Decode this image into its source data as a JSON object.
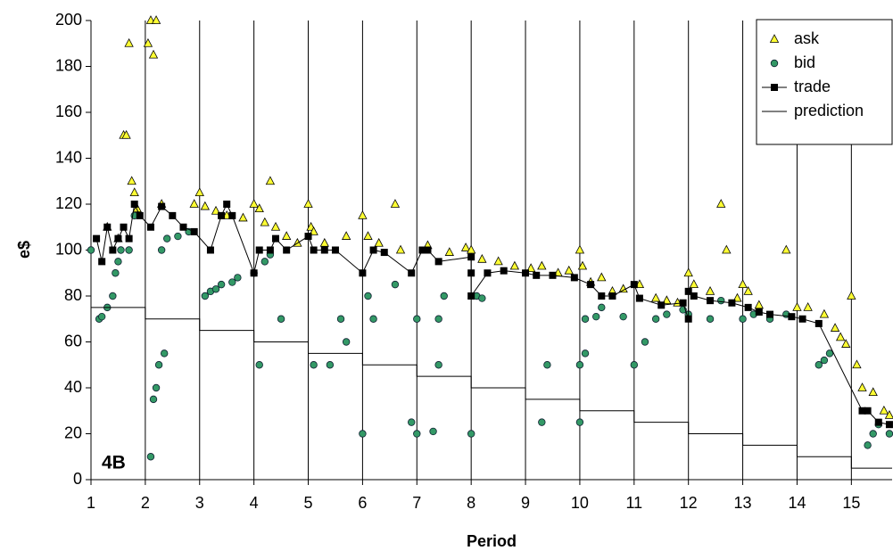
{
  "chart_data": {
    "type": "scatter",
    "label": "4B",
    "x_label": "Period",
    "y_label": "e$",
    "xlim": [
      1,
      15.75
    ],
    "xticks": [
      1,
      2,
      3,
      4,
      5,
      6,
      7,
      8,
      9,
      10,
      11,
      12,
      13,
      14,
      15
    ],
    "ylim": [
      0,
      200
    ],
    "yticks": [
      0,
      20,
      40,
      60,
      80,
      100,
      120,
      140,
      160,
      180,
      200
    ],
    "grid": true,
    "legend": "top-right",
    "series": [
      {
        "name": "ask",
        "marker": "triangle",
        "color": "#ffff33",
        "x": [
          1.3,
          1.5,
          1.6,
          1.65,
          1.7,
          1.75,
          1.8,
          1.85,
          2.05,
          2.1,
          2.15,
          2.2,
          2.3,
          2.9,
          3.0,
          3.1,
          3.3,
          3.5,
          3.8,
          4.0,
          4.1,
          4.2,
          4.3,
          4.4,
          4.6,
          4.8,
          5.0,
          5.05,
          5.1,
          5.3,
          5.7,
          6.0,
          6.1,
          6.3,
          6.6,
          6.7,
          7.2,
          7.6,
          7.9,
          8.0,
          8.2,
          8.5,
          8.8,
          9.1,
          9.3,
          9.6,
          9.8,
          10.0,
          10.05,
          10.2,
          10.4,
          10.6,
          10.8,
          11.1,
          11.4,
          11.6,
          11.8,
          12.0,
          12.1,
          12.4,
          12.6,
          12.7,
          12.9,
          13.0,
          13.1,
          13.3,
          13.8,
          14.0,
          14.2,
          14.5,
          14.7,
          14.8,
          14.9,
          15.0,
          15.1,
          15.2,
          15.4,
          15.6,
          15.7
        ],
        "values": [
          110,
          105,
          150,
          150,
          190,
          130,
          125,
          118,
          190,
          200,
          185,
          200,
          120,
          120,
          125,
          119,
          117,
          115,
          114,
          120,
          118,
          112,
          130,
          110,
          106,
          103,
          120,
          110,
          108,
          103,
          106,
          115,
          106,
          103,
          120,
          100,
          102,
          99,
          101,
          100,
          96,
          95,
          93,
          92,
          93,
          90,
          91,
          100,
          93,
          86,
          88,
          82,
          83,
          85,
          79,
          78,
          77,
          90,
          85,
          82,
          120,
          100,
          79,
          85,
          82,
          76,
          100,
          75,
          75,
          72,
          66,
          62,
          59,
          80,
          50,
          40,
          38,
          30,
          28
        ]
      },
      {
        "name": "bid",
        "marker": "circle",
        "color": "#339966",
        "x": [
          1.0,
          1.15,
          1.2,
          1.3,
          1.4,
          1.45,
          1.5,
          1.55,
          1.7,
          1.8,
          2.1,
          2.15,
          2.2,
          2.25,
          2.35,
          2.3,
          2.4,
          2.6,
          2.8,
          3.1,
          3.2,
          3.3,
          3.4,
          3.6,
          3.7,
          4.0,
          4.1,
          4.2,
          4.3,
          4.5,
          5.1,
          5.4,
          5.6,
          5.7,
          6.0,
          6.1,
          6.2,
          6.6,
          6.9,
          7.0,
          7.0,
          7.3,
          7.4,
          7.4,
          7.5,
          8.0,
          8.1,
          8.2,
          9.3,
          9.4,
          10.0,
          10.0,
          10.1,
          10.1,
          10.3,
          10.4,
          10.8,
          11.0,
          11.2,
          11.4,
          11.6,
          11.9,
          12.0,
          12.4,
          12.6,
          13.0,
          13.2,
          13.5,
          13.8,
          14.4,
          14.5,
          14.6,
          15.3,
          15.4,
          15.5,
          15.7
        ],
        "values": [
          100,
          70,
          71,
          75,
          80,
          90,
          95,
          100,
          100,
          115,
          10,
          35,
          40,
          50,
          55,
          100,
          105,
          106,
          108,
          80,
          82,
          83,
          85,
          86,
          88,
          90,
          50,
          95,
          98,
          70,
          50,
          50,
          70,
          60,
          20,
          80,
          70,
          85,
          25,
          20,
          70,
          21,
          50,
          70,
          80,
          20,
          80,
          79,
          25,
          50,
          25,
          50,
          55,
          70,
          71,
          75,
          71,
          50,
          60,
          70,
          72,
          74,
          72,
          70,
          78,
          70,
          72,
          70,
          72,
          50,
          52,
          55,
          15,
          20,
          24,
          20
        ]
      },
      {
        "name": "trade",
        "marker": "square-line",
        "color": "#000000",
        "x": [
          1.1,
          1.2,
          1.3,
          1.4,
          1.5,
          1.6,
          1.7,
          1.8,
          1.9,
          2.1,
          2.3,
          2.5,
          2.7,
          2.9,
          3.2,
          3.4,
          3.5,
          3.6,
          4.0,
          4.1,
          4.3,
          4.4,
          4.6,
          5.0,
          5.1,
          5.3,
          5.5,
          6.0,
          6.2,
          6.4,
          6.9,
          7.1,
          7.2,
          7.4,
          8.0,
          8.0,
          8.0,
          8.3,
          8.6,
          9.0,
          9.2,
          9.5,
          9.9,
          10.2,
          10.4,
          10.6,
          11.0,
          11.1,
          11.5,
          11.9,
          12.0,
          12.0,
          12.1,
          12.4,
          12.8,
          13.1,
          13.3,
          13.5,
          13.9,
          14.1,
          14.4,
          15.2,
          15.3,
          15.5,
          15.7
        ],
        "values": [
          105,
          95,
          110,
          100,
          105,
          110,
          105,
          120,
          115,
          110,
          119,
          115,
          110,
          108,
          100,
          115,
          120,
          115,
          90,
          100,
          100,
          105,
          100,
          106,
          100,
          100,
          100,
          90,
          100,
          99,
          90,
          100,
          100,
          95,
          97,
          90,
          80,
          90,
          91,
          90,
          89,
          89,
          88,
          85,
          80,
          80,
          85,
          79,
          76,
          77,
          70,
          82,
          80,
          78,
          77,
          75,
          73,
          72,
          71,
          70,
          68,
          30,
          30,
          25,
          24
        ]
      },
      {
        "name": "prediction",
        "marker": "line",
        "color": "#000000",
        "x": [
          1,
          2,
          2,
          3,
          3,
          4,
          4,
          5,
          5,
          6,
          6,
          7,
          7,
          8,
          8,
          9,
          9,
          10,
          10,
          11,
          11,
          12,
          12,
          13,
          13,
          14,
          14,
          15,
          15,
          15.75
        ],
        "values": [
          75,
          75,
          70,
          70,
          65,
          65,
          60,
          60,
          55,
          55,
          50,
          50,
          45,
          45,
          40,
          40,
          35,
          35,
          30,
          30,
          25,
          25,
          20,
          20,
          15,
          15,
          10,
          10,
          5,
          5
        ]
      }
    ]
  }
}
